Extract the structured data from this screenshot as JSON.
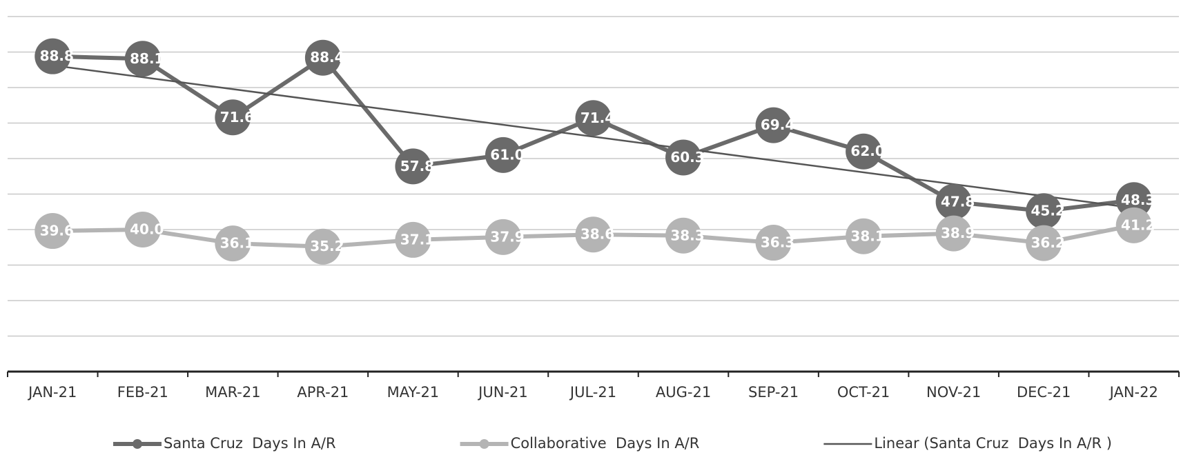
{
  "chart_data": {
    "type": "line",
    "categories": [
      "JAN-21",
      "FEB-21",
      "MAR-21",
      "APR-21",
      "MAY-21",
      "JUN-21",
      "JUL-21",
      "AUG-21",
      "SEP-21",
      "OCT-21",
      "NOV-21",
      "DEC-21",
      "JAN-22"
    ],
    "series": [
      {
        "name": "Santa Cruz  Days In A/R",
        "color": "#6a6a6a",
        "values": [
          88.8,
          88.1,
          71.6,
          88.4,
          57.8,
          61.0,
          71.4,
          60.3,
          69.4,
          62.0,
          47.8,
          45.2,
          48.3
        ],
        "value_labels": [
          "88.8",
          "88.1",
          "71.6",
          "88.4",
          "57.8",
          "61.0",
          "71.4",
          "60.3",
          "69.4",
          "62.0",
          "47.8",
          "45.2",
          "48.3"
        ],
        "trendline": {
          "type": "linear",
          "name": "Linear (Santa Cruz  Days In A/R )",
          "color": "#555555"
        }
      },
      {
        "name": "Collaborative  Days In A/R",
        "color": "#b4b4b4",
        "values": [
          39.6,
          40.0,
          36.1,
          35.2,
          37.1,
          37.9,
          38.6,
          38.3,
          36.3,
          38.1,
          38.9,
          36.2,
          41.2
        ],
        "value_labels": [
          "39.6",
          "40.0",
          "36.1",
          "35.2",
          "37.1",
          "37.9",
          "38.6",
          "38.3",
          "36.3",
          "38.1",
          "38.9",
          "36.2",
          "41.2"
        ]
      }
    ],
    "ylim": [
      0,
      100
    ],
    "yticks": [
      0,
      10,
      20,
      30,
      40,
      50,
      60,
      70,
      80,
      90,
      100
    ],
    "ytick_labels": false,
    "grid": true,
    "legend": "bottom"
  }
}
